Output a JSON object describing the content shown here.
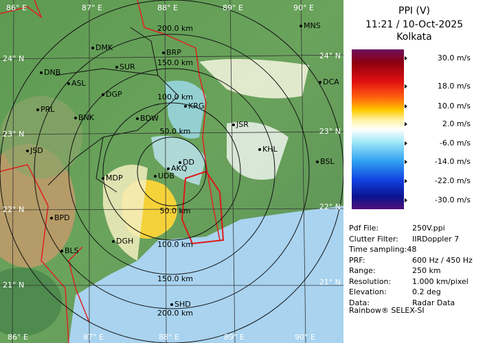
{
  "legend": {
    "title": "PPI (V)",
    "time": "11:21 / 10-Oct-2025",
    "station": "Kolkata",
    "scale_labels": [
      "30.0 m/s",
      "18.0 m/s",
      "10.0 m/s",
      "2.0 m/s",
      "-6.0 m/s",
      "-14.0 m/s",
      "-22.0 m/s",
      "-30.0 m/s"
    ]
  },
  "info": [
    {
      "key": "Pdf File:",
      "value": "250V.ppi"
    },
    {
      "key": "Clutter Filter:",
      "value": "IIRDoppler 7"
    },
    {
      "key": "Time sampling:48"
    },
    {
      "key": "PRF:",
      "value": "600 Hz / 450 Hz"
    },
    {
      "key": "Range:",
      "value": "250 km"
    },
    {
      "key": "Resolution:",
      "value": "1.000 km/pixel"
    },
    {
      "key": "Elevation:",
      "value": "0.2 deg"
    },
    {
      "key": "Data:",
      "value": "Radar Data"
    }
  ],
  "footer": "Rainbow® SELEX-SI",
  "map": {
    "lon_labels": [
      "86° E",
      "87° E",
      "88° E",
      "89° E",
      "90° E"
    ],
    "lat_labels": [
      "24° N",
      "23° N",
      "22° N",
      "21° N"
    ],
    "range_labels_north": [
      "50.0 km",
      "100.0 km",
      "150.0 km",
      "200.0 km"
    ],
    "range_labels_south": [
      "50.0 km",
      "100.0 km",
      "150.0 km",
      "200.0 km"
    ],
    "cities": [
      "MNS",
      "DMK",
      "BRP",
      "DNB",
      "SUR",
      "ASL",
      "DCA",
      "DGP",
      "KRG",
      "PRL",
      "BNK",
      "BDW",
      "JSR",
      "JSD",
      "KHL",
      "DD",
      "BSL",
      "AKQ",
      "UDB",
      "MDP",
      "BPD",
      "DGH",
      "BLS",
      "SHD"
    ]
  }
}
